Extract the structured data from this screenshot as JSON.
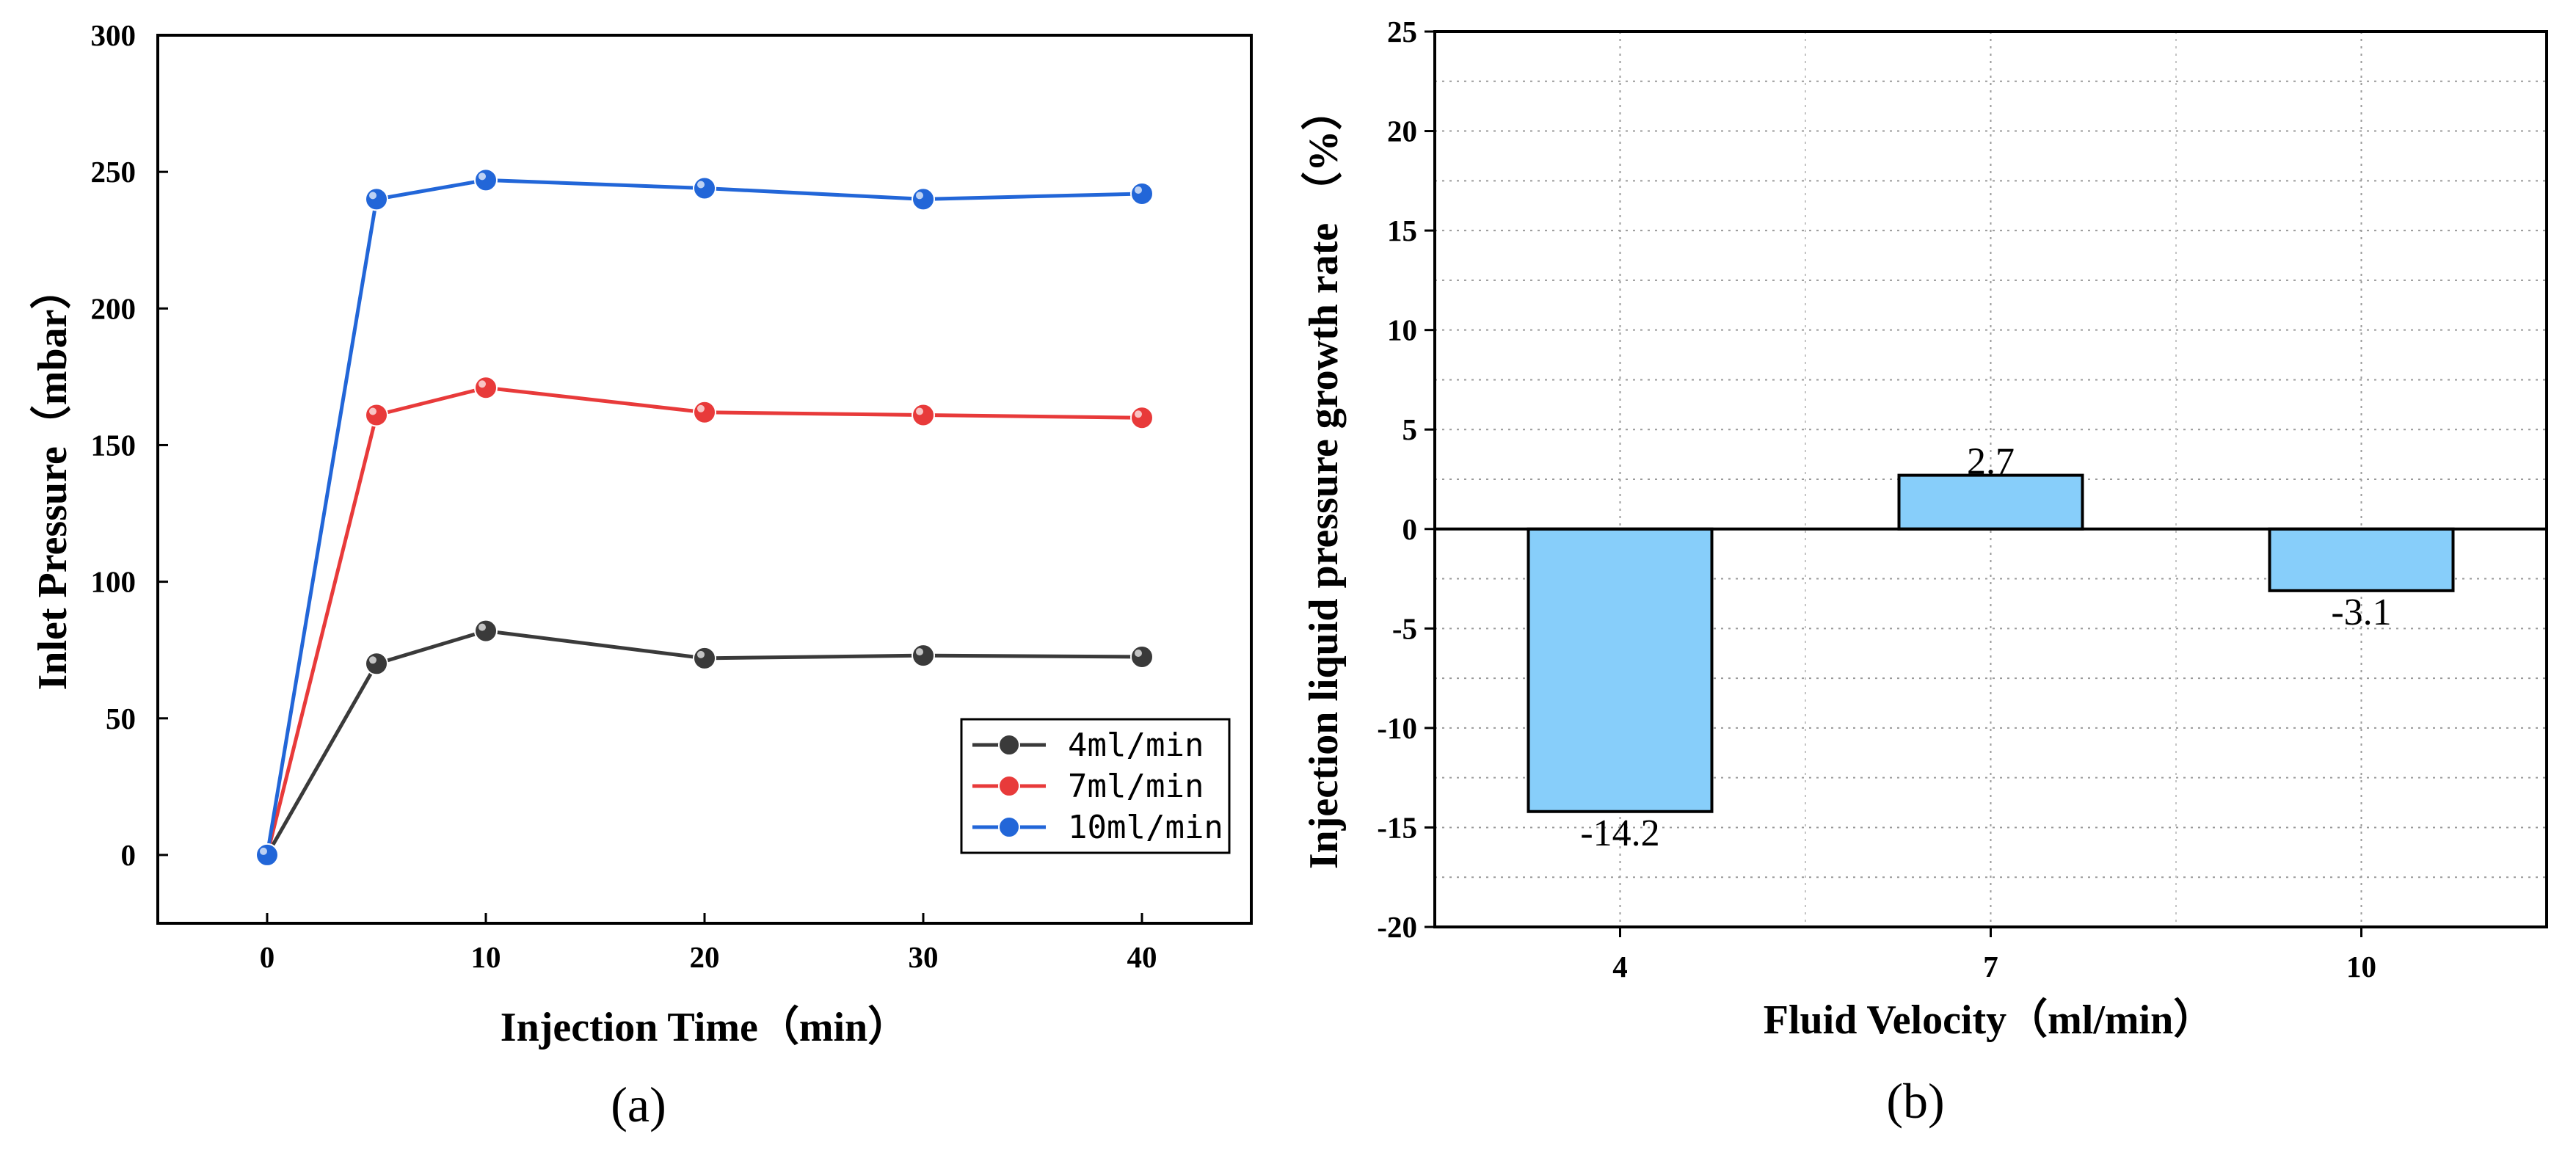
{
  "chart_data": [
    {
      "panel": "(a)",
      "type": "line",
      "xlabel": "Injection Time（min）",
      "ylabel": "Inlet Pressure（mbar）",
      "xlim": [
        -5,
        45
      ],
      "ylim": [
        -25,
        300
      ],
      "xticks": [
        0,
        10,
        20,
        30,
        40
      ],
      "yticks": [
        0,
        50,
        100,
        150,
        200,
        250,
        300
      ],
      "grid": false,
      "legend_position": "bottom-right",
      "x": [
        0,
        5,
        10,
        20,
        30,
        40
      ],
      "series": [
        {
          "name": "4ml/min",
          "color": "#3a3a3a",
          "values": [
            0,
            70,
            82,
            72,
            73,
            72.5
          ]
        },
        {
          "name": "7ml/min",
          "color": "#e83a3a",
          "values": [
            0,
            161,
            171,
            162,
            161,
            160
          ]
        },
        {
          "name": "10ml/min",
          "color": "#2266d8",
          "values": [
            0,
            240,
            247,
            244,
            240,
            242
          ]
        }
      ]
    },
    {
      "panel": "(b)",
      "type": "bar",
      "xlabel": "Fluid Velocity（ml/min）",
      "ylabel": "Injection liquid pressure growth rate （%）",
      "categories": [
        "4",
        "7",
        "10"
      ],
      "values": [
        -14.2,
        2.7,
        -3.1
      ],
      "data_labels": [
        "-14.2",
        "2.7",
        "-3.1"
      ],
      "ylim": [
        -20,
        25
      ],
      "yticks": [
        -20,
        -15,
        -10,
        -5,
        0,
        5,
        10,
        15,
        20,
        25
      ],
      "grid": true,
      "bar_color": "#87cefa"
    }
  ]
}
